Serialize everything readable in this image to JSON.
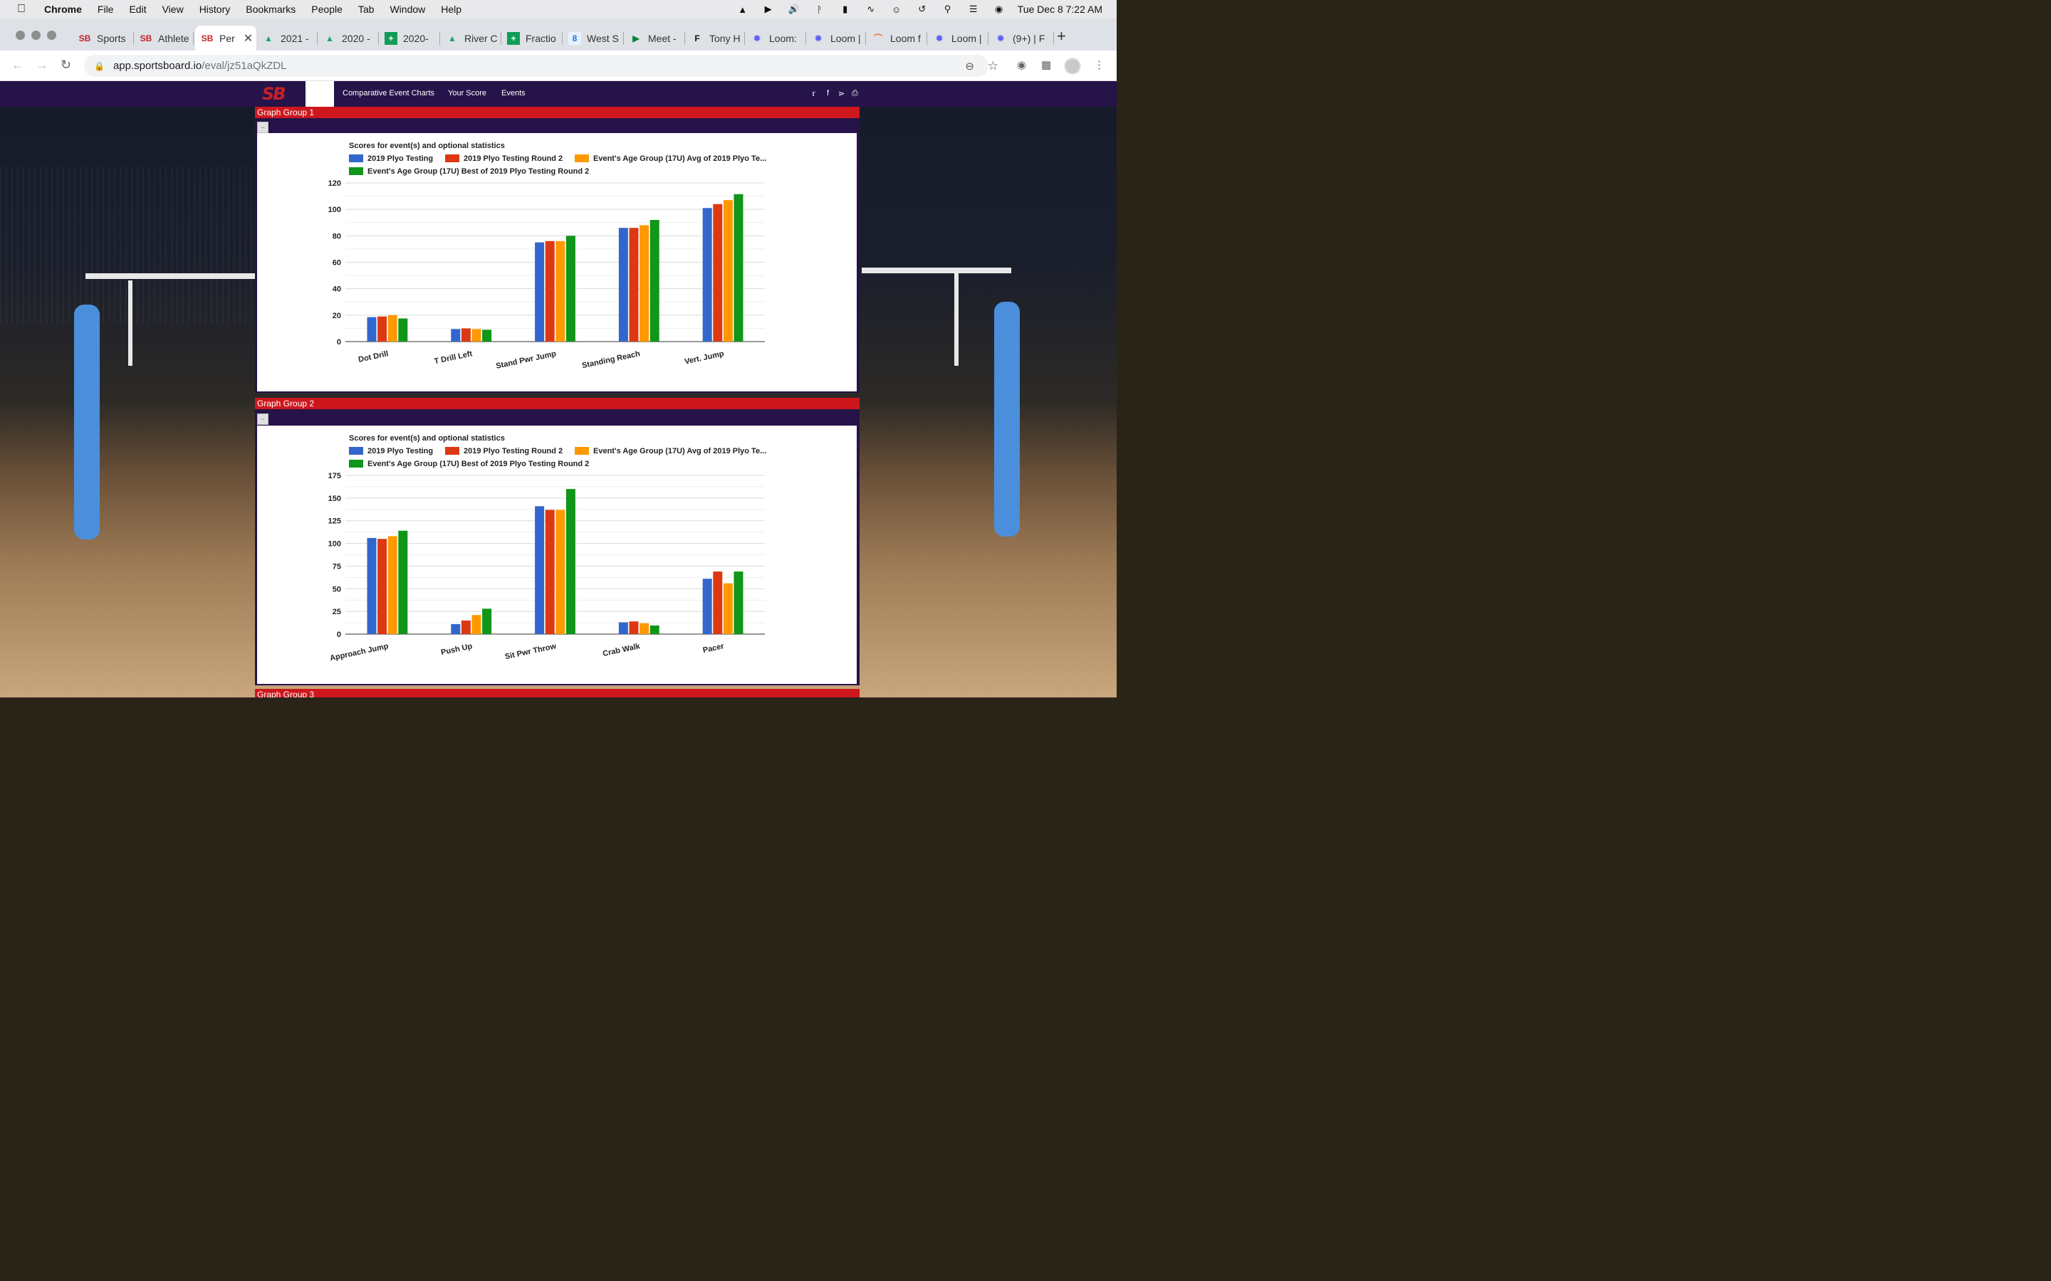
{
  "menubar": {
    "app_name": "Chrome",
    "items": [
      "File",
      "Edit",
      "View",
      "History",
      "Bookmarks",
      "People",
      "Tab",
      "Window",
      "Help"
    ],
    "datetime": "Tue Dec 8  7:22 AM"
  },
  "tabs": [
    {
      "title": "Sports",
      "favicon": "SB"
    },
    {
      "title": "Athlete",
      "favicon": "SB"
    },
    {
      "title": "Per",
      "favicon": "SB",
      "active": true
    },
    {
      "title": "2021 -",
      "favicon": "drive"
    },
    {
      "title": "2020 -",
      "favicon": "drive"
    },
    {
      "title": "2020-",
      "favicon": "sheets"
    },
    {
      "title": "River C",
      "favicon": "drive"
    },
    {
      "title": "Fractio",
      "favicon": "sheets"
    },
    {
      "title": "West S",
      "favicon": "calendar"
    },
    {
      "title": "Meet -",
      "favicon": "meet"
    },
    {
      "title": "Tony H",
      "favicon": "F"
    },
    {
      "title": "Loom:",
      "favicon": "loom"
    },
    {
      "title": "Loom |",
      "favicon": "loom"
    },
    {
      "title": "Loom f",
      "favicon": "rainbow"
    },
    {
      "title": "Loom |",
      "favicon": "loom"
    },
    {
      "title": "(9+) | F",
      "favicon": "loom"
    }
  ],
  "address": {
    "host": "app.sportsboard.io",
    "path": "/eval/jz51aQkZDL"
  },
  "site": {
    "logo": "SB",
    "nav": [
      "Comparative Event Charts",
      "Your Score",
      "Events"
    ]
  },
  "colors": {
    "series": [
      "#3366cc",
      "#dc3912",
      "#ff9900",
      "#109618"
    ],
    "nav_bg": "#261349",
    "group_bar": "#cd171d"
  },
  "groups": [
    {
      "label": "Graph Group 1"
    },
    {
      "label": "Graph Group 2"
    },
    {
      "label": "Graph Group 3"
    }
  ],
  "chart_data": [
    {
      "type": "bar",
      "title": "Scores for event(s) and optional statistics",
      "categories": [
        "Dot Drill",
        "T Drill Left",
        "Stand Pwr Jump",
        "Standing Reach",
        "Vert. Jump"
      ],
      "ylim": [
        0,
        120
      ],
      "yticks": [
        0,
        20,
        40,
        60,
        80,
        100,
        120
      ],
      "grid": true,
      "legend": "top",
      "series": [
        {
          "name": "2019 Plyo Testing",
          "values": [
            18.5,
            9.5,
            75,
            86,
            101
          ]
        },
        {
          "name": "2019 Plyo Testing Round 2",
          "values": [
            19,
            10,
            76,
            86,
            104
          ]
        },
        {
          "name": "Event's Age Group (17U) Avg of 2019 Plyo Te...",
          "values": [
            20,
            9.5,
            76,
            88,
            107
          ]
        },
        {
          "name": "Event's Age Group (17U) Best of 2019 Plyo Testing Round 2",
          "values": [
            17.5,
            9,
            80,
            92,
            111.5
          ]
        }
      ]
    },
    {
      "type": "bar",
      "title": "Scores for event(s) and optional statistics",
      "categories": [
        "Approach Jump",
        "Push Up",
        "Sit Pwr Throw",
        "Crab Walk",
        "Pacer"
      ],
      "ylim": [
        0,
        175
      ],
      "yticks": [
        0,
        25,
        50,
        75,
        100,
        125,
        150,
        175
      ],
      "grid": true,
      "legend": "top",
      "series": [
        {
          "name": "2019 Plyo Testing",
          "values": [
            106,
            11,
            141,
            13,
            61
          ]
        },
        {
          "name": "2019 Plyo Testing Round 2",
          "values": [
            105,
            15,
            137,
            14,
            69
          ]
        },
        {
          "name": "Event's Age Group (17U) Avg of 2019 Plyo Te...",
          "values": [
            108,
            21,
            137,
            12,
            56
          ]
        },
        {
          "name": "Event's Age Group (17U) Best of 2019 Plyo Testing Round 2",
          "values": [
            114,
            28,
            160,
            9.5,
            69
          ]
        }
      ]
    }
  ]
}
